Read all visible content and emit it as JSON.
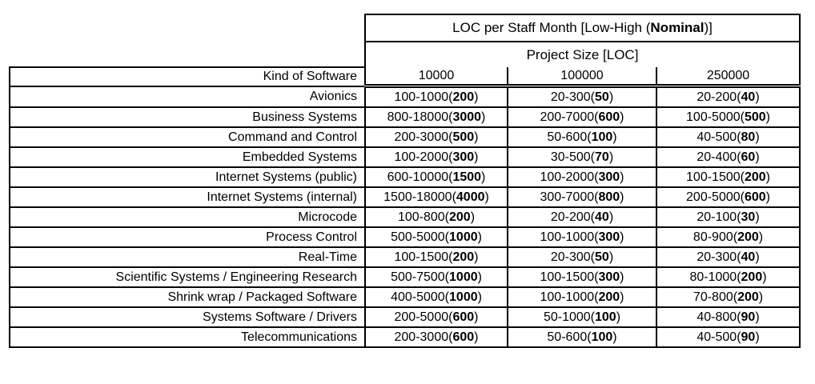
{
  "style": {
    "background": "#ffffff",
    "text_color": "#000000",
    "border_color": "#000000"
  },
  "table": {
    "title": {
      "pre": "LOC per Staff Month [Low-High (",
      "bold": "Nominal",
      "post": ")]"
    },
    "subheader": "Project Size [LOC]",
    "corner_label": "Kind of Software",
    "size_columns": [
      "10000",
      "100000",
      "250000"
    ],
    "rows": [
      {
        "kind": "Avionics",
        "cells": [
          {
            "pre": "100-1000(",
            "bold": "200",
            "post": ")"
          },
          {
            "pre": "20-300(",
            "bold": "50",
            "post": ")"
          },
          {
            "pre": "20-200(",
            "bold": "40",
            "post": ")"
          }
        ]
      },
      {
        "kind": "Business Systems",
        "cells": [
          {
            "pre": "800-18000(",
            "bold": "3000",
            "post": ")"
          },
          {
            "pre": "200-7000(",
            "bold": "600",
            "post": ")"
          },
          {
            "pre": "100-5000(",
            "bold": "500",
            "post": ")"
          }
        ]
      },
      {
        "kind": "Command and Control",
        "cells": [
          {
            "pre": "200-3000(",
            "bold": "500",
            "post": ")"
          },
          {
            "pre": "50-600(",
            "bold": "100",
            "post": ")"
          },
          {
            "pre": "40-500(",
            "bold": "80",
            "post": ")"
          }
        ]
      },
      {
        "kind": "Embedded Systems",
        "cells": [
          {
            "pre": "100-2000(",
            "bold": "300",
            "post": ")"
          },
          {
            "pre": "30-500(",
            "bold": "70",
            "post": ")"
          },
          {
            "pre": "20-400(",
            "bold": "60",
            "post": ")"
          }
        ]
      },
      {
        "kind": "Internet Systems (public)",
        "cells": [
          {
            "pre": "600-10000(",
            "bold": "1500",
            "post": ")"
          },
          {
            "pre": "100-2000(",
            "bold": "300",
            "post": ")"
          },
          {
            "pre": "100-1500(",
            "bold": "200",
            "post": ")"
          }
        ]
      },
      {
        "kind": "Internet Systems (internal)",
        "cells": [
          {
            "pre": "1500-18000(",
            "bold": "4000",
            "post": ")"
          },
          {
            "pre": "300-7000(",
            "bold": "800",
            "post": ")"
          },
          {
            "pre": "200-5000(",
            "bold": "600",
            "post": ")"
          }
        ]
      },
      {
        "kind": "Microcode",
        "cells": [
          {
            "pre": "100-800(",
            "bold": "200",
            "post": ")"
          },
          {
            "pre": "20-200(",
            "bold": "40",
            "post": ")"
          },
          {
            "pre": "20-100(",
            "bold": "30",
            "post": ")"
          }
        ]
      },
      {
        "kind": "Process Control",
        "cells": [
          {
            "pre": "500-5000(",
            "bold": "1000",
            "post": ")"
          },
          {
            "pre": "100-1000(",
            "bold": "300",
            "post": ")"
          },
          {
            "pre": "80-900(",
            "bold": "200",
            "post": ")"
          }
        ]
      },
      {
        "kind": "Real-Time",
        "cells": [
          {
            "pre": "100-1500(",
            "bold": "200",
            "post": ")"
          },
          {
            "pre": "20-300(",
            "bold": "50",
            "post": ")"
          },
          {
            "pre": "20-300(",
            "bold": "40",
            "post": ")"
          }
        ]
      },
      {
        "kind": "Scientific Systems / Engineering Research",
        "cells": [
          {
            "pre": "500-7500(",
            "bold": "1000",
            "post": ")"
          },
          {
            "pre": "100-1500(",
            "bold": "300",
            "post": ")"
          },
          {
            "pre": "80-1000(",
            "bold": "200",
            "post": ")"
          }
        ]
      },
      {
        "kind": "Shrink wrap / Packaged Software",
        "cells": [
          {
            "pre": "400-5000(",
            "bold": "1000",
            "post": ")"
          },
          {
            "pre": "100-1000(",
            "bold": "200",
            "post": ")"
          },
          {
            "pre": "70-800(",
            "bold": "200",
            "post": ")"
          }
        ]
      },
      {
        "kind": "Systems Software / Drivers",
        "cells": [
          {
            "pre": "200-5000(",
            "bold": "600",
            "post": ")"
          },
          {
            "pre": "50-1000(",
            "bold": "100",
            "post": ")"
          },
          {
            "pre": "40-800(",
            "bold": "90",
            "post": ")"
          }
        ]
      },
      {
        "kind": "Telecommunications",
        "cells": [
          {
            "pre": "200-3000(",
            "bold": "600",
            "post": ")"
          },
          {
            "pre": "50-600(",
            "bold": "100",
            "post": ")"
          },
          {
            "pre": "40-500(",
            "bold": "90",
            "post": ")"
          }
        ]
      }
    ]
  }
}
